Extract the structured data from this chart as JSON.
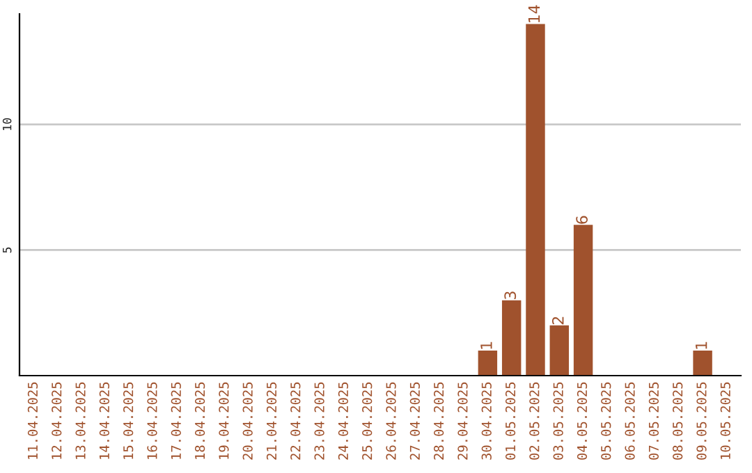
{
  "chart_data": {
    "type": "bar",
    "categories": [
      "11.04.2025",
      "12.04.2025",
      "13.04.2025",
      "14.04.2025",
      "15.04.2025",
      "16.04.2025",
      "17.04.2025",
      "18.04.2025",
      "19.04.2025",
      "20.04.2025",
      "21.04.2025",
      "22.04.2025",
      "23.04.2025",
      "24.04.2025",
      "25.04.2025",
      "26.04.2025",
      "27.04.2025",
      "28.04.2025",
      "29.04.2025",
      "30.04.2025",
      "01.05.2025",
      "02.05.2025",
      "03.05.2025",
      "04.05.2025",
      "05.05.2025",
      "06.05.2025",
      "07.05.2025",
      "08.05.2025",
      "09.05.2025",
      "10.05.2025"
    ],
    "values": [
      null,
      null,
      null,
      null,
      null,
      null,
      null,
      null,
      null,
      null,
      null,
      null,
      null,
      null,
      null,
      null,
      null,
      null,
      null,
      1,
      3,
      14,
      2,
      6,
      null,
      null,
      null,
      null,
      1,
      null
    ],
    "value_labels": [
      null,
      null,
      null,
      null,
      null,
      null,
      null,
      null,
      null,
      null,
      null,
      null,
      null,
      null,
      null,
      null,
      null,
      null,
      null,
      "1",
      "3",
      "14",
      "2",
      "6",
      null,
      null,
      null,
      null,
      "1",
      null
    ],
    "color": "#a0522d",
    "ylim": [
      0,
      14.4
    ],
    "yticks": [
      5,
      10
    ],
    "grid": "y"
  }
}
